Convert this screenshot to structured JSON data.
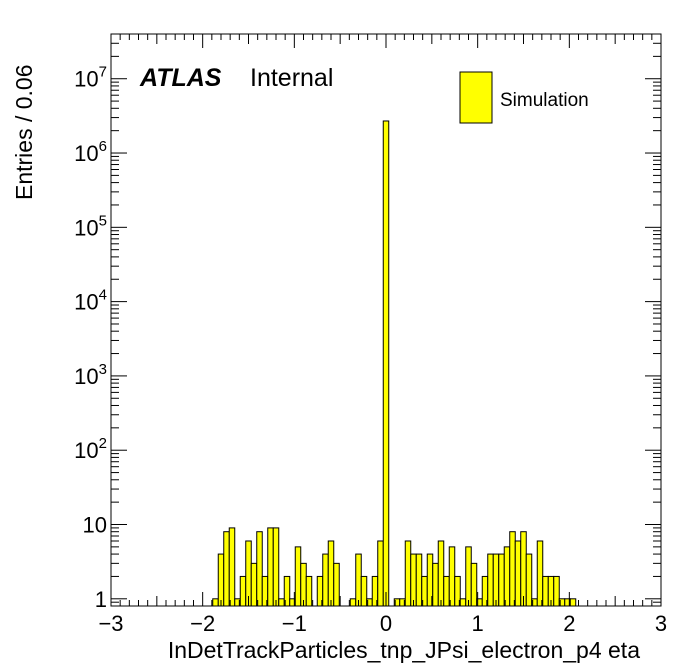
{
  "chart_data": {
    "type": "bar",
    "xlabel": "InDetTrackParticles_tnp_JPsi_electron_p4 eta",
    "ylabel": "Entries / 0.06",
    "xlim": [
      -3,
      3
    ],
    "ylim": [
      0.8,
      40000000
    ],
    "yscale": "log",
    "bin_width": 0.06,
    "x_ticks": [
      -3,
      -2,
      -1,
      0,
      1,
      2,
      3
    ],
    "x_tick_labels": [
      "−3",
      "−2",
      "−1",
      "0",
      "1",
      "2",
      "3"
    ],
    "y_ticks": [
      1,
      10,
      100,
      1000,
      10000,
      100000,
      1000000,
      10000000
    ],
    "y_tick_labels": [
      {
        "base": "1",
        "exp": ""
      },
      {
        "base": "10",
        "exp": ""
      },
      {
        "base": "10",
        "exp": "2"
      },
      {
        "base": "10",
        "exp": "3"
      },
      {
        "base": "10",
        "exp": "4"
      },
      {
        "base": "10",
        "exp": "5"
      },
      {
        "base": "10",
        "exp": "6"
      },
      {
        "base": "10",
        "exp": "7"
      }
    ],
    "atlas_label": "ATLAS",
    "status_label": "Internal",
    "legend": {
      "placement": "top-right",
      "entries": [
        {
          "name": "Simulation",
          "color": "#ffff00"
        }
      ]
    },
    "fill_color": "#ffff00",
    "line_color": "#000000",
    "series": [
      {
        "name": "Simulation",
        "bins": [
          {
            "x": -1.86,
            "value": 1
          },
          {
            "x": -1.8,
            "value": 4
          },
          {
            "x": -1.74,
            "value": 8
          },
          {
            "x": -1.68,
            "value": 9
          },
          {
            "x": -1.62,
            "value": 1
          },
          {
            "x": -1.56,
            "value": 2
          },
          {
            "x": -1.5,
            "value": 6
          },
          {
            "x": -1.44,
            "value": 3
          },
          {
            "x": -1.38,
            "value": 8
          },
          {
            "x": -1.32,
            "value": 2
          },
          {
            "x": -1.26,
            "value": 9
          },
          {
            "x": -1.2,
            "value": 9
          },
          {
            "x": -1.14,
            "value": 1
          },
          {
            "x": -1.08,
            "value": 2
          },
          {
            "x": -1.02,
            "value": 1
          },
          {
            "x": -0.96,
            "value": 5
          },
          {
            "x": -0.9,
            "value": 3
          },
          {
            "x": -0.84,
            "value": 2
          },
          {
            "x": -0.72,
            "value": 2
          },
          {
            "x": -0.66,
            "value": 4
          },
          {
            "x": -0.6,
            "value": 6
          },
          {
            "x": -0.54,
            "value": 3
          },
          {
            "x": -0.36,
            "value": 1
          },
          {
            "x": -0.3,
            "value": 4
          },
          {
            "x": -0.24,
            "value": 2
          },
          {
            "x": -0.18,
            "value": 1
          },
          {
            "x": -0.12,
            "value": 2
          },
          {
            "x": -0.06,
            "value": 6
          },
          {
            "x": 0.0,
            "value": 2700000
          },
          {
            "x": 0.12,
            "value": 1
          },
          {
            "x": 0.18,
            "value": 1
          },
          {
            "x": 0.24,
            "value": 6
          },
          {
            "x": 0.3,
            "value": 4
          },
          {
            "x": 0.36,
            "value": 4
          },
          {
            "x": 0.42,
            "value": 2
          },
          {
            "x": 0.48,
            "value": 4
          },
          {
            "x": 0.54,
            "value": 3
          },
          {
            "x": 0.6,
            "value": 6
          },
          {
            "x": 0.66,
            "value": 2
          },
          {
            "x": 0.72,
            "value": 5
          },
          {
            "x": 0.78,
            "value": 2
          },
          {
            "x": 0.84,
            "value": 1
          },
          {
            "x": 0.9,
            "value": 5
          },
          {
            "x": 0.96,
            "value": 3
          },
          {
            "x": 1.02,
            "value": 1
          },
          {
            "x": 1.08,
            "value": 2
          },
          {
            "x": 1.14,
            "value": 4
          },
          {
            "x": 1.2,
            "value": 4
          },
          {
            "x": 1.26,
            "value": 4
          },
          {
            "x": 1.32,
            "value": 5
          },
          {
            "x": 1.38,
            "value": 8
          },
          {
            "x": 1.44,
            "value": 6
          },
          {
            "x": 1.5,
            "value": 8
          },
          {
            "x": 1.56,
            "value": 4
          },
          {
            "x": 1.62,
            "value": 1
          },
          {
            "x": 1.68,
            "value": 6
          },
          {
            "x": 1.74,
            "value": 2
          },
          {
            "x": 1.8,
            "value": 2
          },
          {
            "x": 1.86,
            "value": 2
          },
          {
            "x": 1.92,
            "value": 1
          },
          {
            "x": 1.98,
            "value": 1
          },
          {
            "x": 2.04,
            "value": 1
          }
        ]
      }
    ]
  }
}
